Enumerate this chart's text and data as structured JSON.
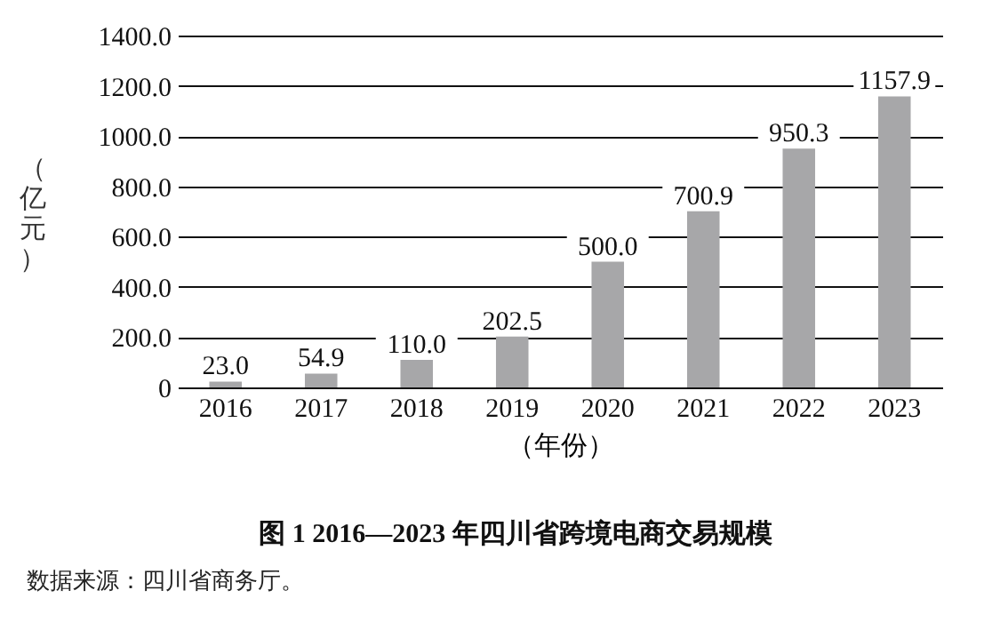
{
  "chart_data": {
    "type": "bar",
    "title": "图 1   2016—2023 年四川省跨境电商交易规模",
    "xlabel": "（年份）",
    "ylabel": "（亿元）",
    "annotations": [
      "数据来源：四川省商务厅。"
    ],
    "categories": [
      "2016",
      "2017",
      "2018",
      "2019",
      "2020",
      "2021",
      "2022",
      "2023"
    ],
    "values": [
      23.0,
      54.9,
      110.0,
      202.5,
      500.0,
      700.9,
      950.3,
      1157.9
    ],
    "value_labels": [
      "23.0",
      "54.9",
      "110.0",
      "202.5",
      "500.0",
      "700.9",
      "950.3",
      "1157.9"
    ],
    "color": "#a7a7a9",
    "grid": "y",
    "ylim": [
      0,
      1400
    ],
    "yticks": [
      0,
      {
        "value": 200,
        "label": "200.0"
      },
      {
        "value": 400,
        "label": "400.0"
      },
      {
        "value": 600,
        "label": "600.0"
      },
      {
        "value": 800,
        "label": "800.0"
      },
      {
        "value": 1000,
        "label": "1000.0"
      },
      {
        "value": 1200,
        "label": "1200.0"
      },
      {
        "value": 1400,
        "label": "1400.0"
      }
    ]
  }
}
